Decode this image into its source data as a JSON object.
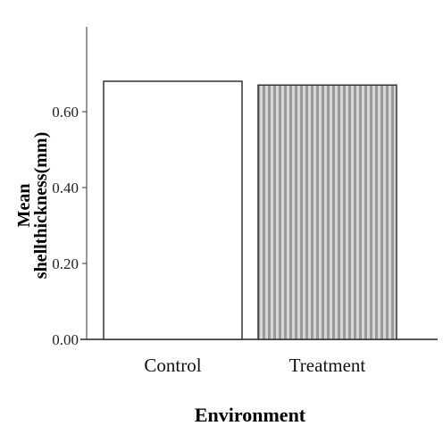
{
  "chart_data": {
    "type": "bar",
    "categories": [
      "Control",
      "Treatment"
    ],
    "values": [
      0.68,
      0.67
    ],
    "ylabel_lines": [
      "Mean",
      "shellthickness(mm)"
    ],
    "xlabel": "Environment",
    "ylim": [
      0,
      0.7
    ],
    "yticks": [
      "0.00",
      "0.20",
      "0.40",
      "0.60"
    ],
    "ytick_values": [
      0,
      0.2,
      0.4,
      0.6
    ],
    "grid": false,
    "legend": "none",
    "bar_styles": [
      {
        "fill": "#ffffff",
        "pattern": "none"
      },
      {
        "fill": "#c8c8c8",
        "pattern": "vertical-stripes"
      }
    ],
    "colors": {
      "stroke": "#333333",
      "stripe_dark": "#8a8a8a",
      "stripe_light": "#d6d6d6"
    }
  }
}
